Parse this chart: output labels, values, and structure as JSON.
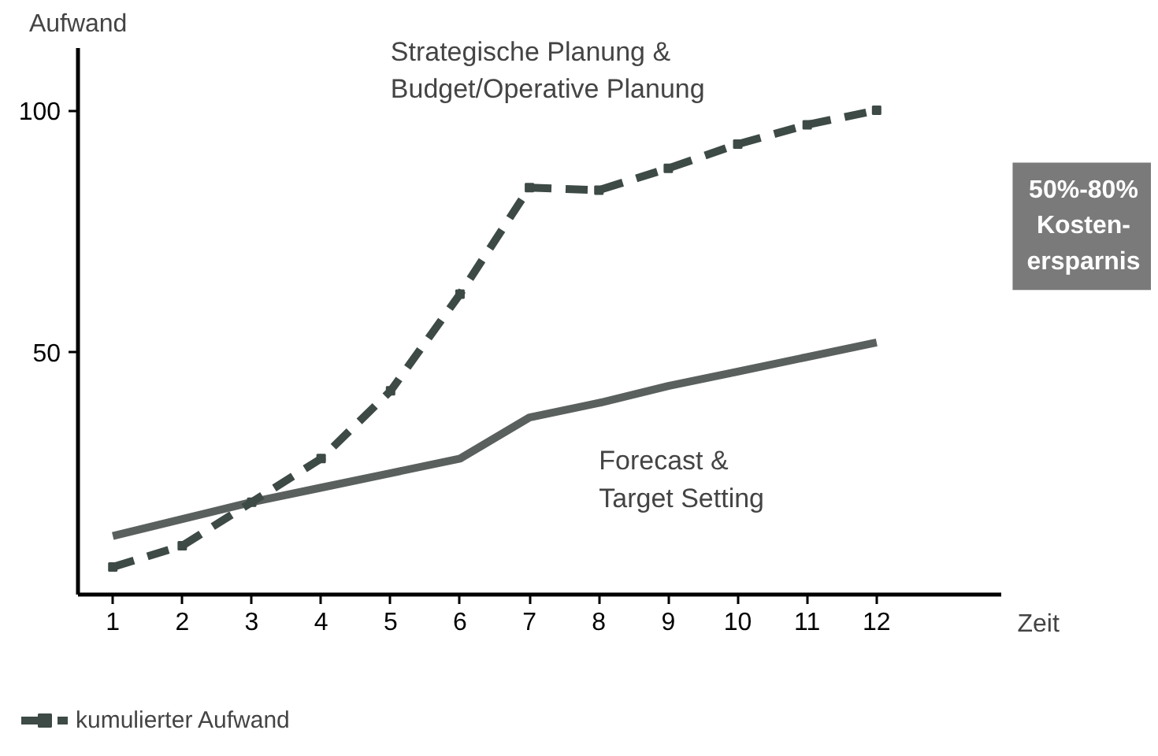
{
  "chart_data": {
    "type": "line",
    "xlabel": "Zeit",
    "ylabel": "Aufwand",
    "x": [
      1,
      2,
      3,
      4,
      5,
      6,
      7,
      8,
      9,
      10,
      11,
      12
    ],
    "xlim": [
      0.5,
      13.8
    ],
    "ylim": [
      0,
      113
    ],
    "xticks": [
      1,
      2,
      3,
      4,
      5,
      6,
      7,
      8,
      9,
      10,
      11,
      12
    ],
    "yticks": [
      50,
      100
    ],
    "series": [
      {
        "name": "kumulierter Aufwand",
        "color": "#3d4a45",
        "line_style": "dashed",
        "marker": "square",
        "values": [
          5.6,
          10,
          19,
          28,
          42,
          62,
          84,
          83.5,
          88,
          93,
          97,
          100
        ]
      },
      {
        "color": "#5a605e",
        "line_style": "solid",
        "values": [
          12,
          15.5,
          19,
          22,
          25,
          28,
          36.5,
          39.5,
          43,
          46,
          49,
          52
        ]
      }
    ],
    "annotations": [
      "Strategische Planung &\nBudget/Operative Planung",
      "Forecast &\nTarget Setting",
      "50%-80%\nKosten-\nersparnis"
    ],
    "legend": "bottom left",
    "grid": false
  }
}
